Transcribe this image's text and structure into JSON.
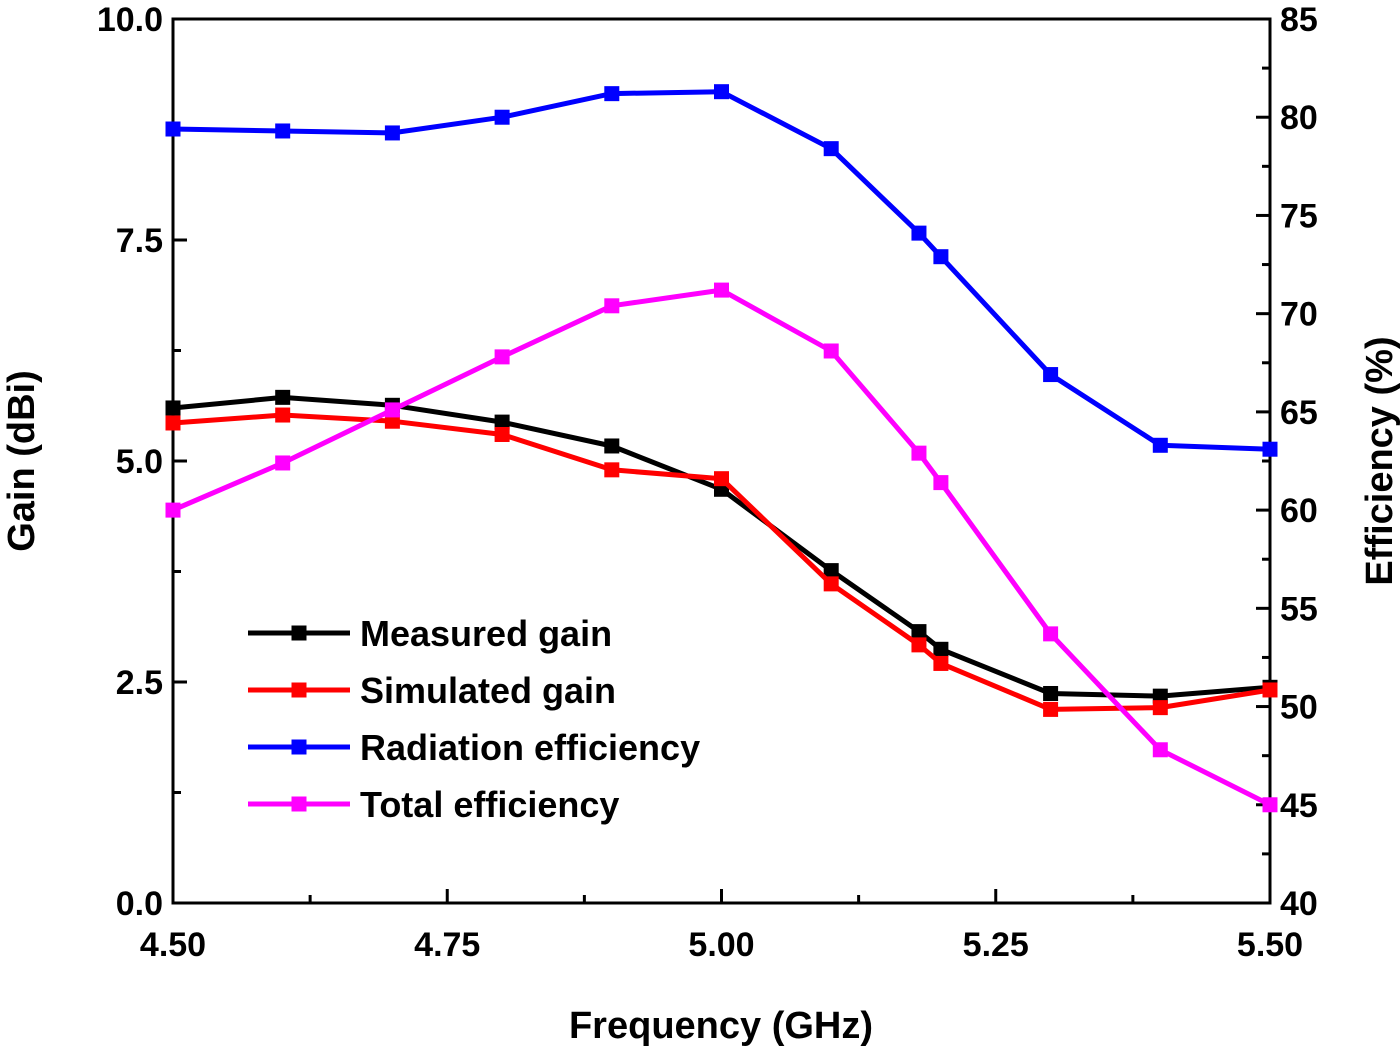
{
  "chart_data": {
    "type": "line",
    "xlabel": "Frequency (GHz)",
    "ylabel": "Gain (dBi)",
    "y2label": "Efficiency (%)",
    "xlim": [
      4.5,
      5.5
    ],
    "ylim": [
      0,
      10
    ],
    "y2lim": [
      40,
      85
    ],
    "xticks": [
      "4.50",
      "4.75",
      "5.00",
      "5.25",
      "5.50"
    ],
    "yticks": [
      "0.0",
      "2.5",
      "5.0",
      "7.5",
      "10.0"
    ],
    "y2ticks": [
      "40",
      "45",
      "50",
      "55",
      "60",
      "65",
      "70",
      "75",
      "80",
      "85"
    ],
    "grid": false,
    "legend_position": "bottom-left",
    "series": [
      {
        "name": "Measured gain",
        "axis": "left",
        "color": "#000000",
        "x": [
          4.5,
          4.6,
          4.7,
          4.8,
          4.9,
          5.0,
          5.1,
          5.18,
          5.2,
          5.3,
          5.4,
          5.5
        ],
        "y": [
          5.6,
          5.72,
          5.63,
          5.44,
          5.17,
          4.68,
          3.76,
          3.07,
          2.87,
          2.37,
          2.34,
          2.44
        ]
      },
      {
        "name": "Simulated gain",
        "axis": "left",
        "color": "#ff0000",
        "x": [
          4.5,
          4.6,
          4.7,
          4.8,
          4.9,
          5.0,
          5.1,
          5.18,
          5.2,
          5.3,
          5.4,
          5.5
        ],
        "y": [
          5.43,
          5.52,
          5.45,
          5.3,
          4.9,
          4.8,
          3.61,
          2.92,
          2.71,
          2.19,
          2.21,
          2.41
        ]
      },
      {
        "name": "Radiation efficiency",
        "axis": "right",
        "color": "#0000ff",
        "x": [
          4.5,
          4.6,
          4.7,
          4.8,
          4.9,
          5.0,
          5.1,
          5.18,
          5.2,
          5.3,
          5.4,
          5.5
        ],
        "y": [
          79.4,
          79.3,
          79.2,
          80.0,
          81.2,
          81.3,
          78.4,
          74.1,
          72.9,
          66.9,
          63.3,
          63.1
        ]
      },
      {
        "name": "Total efficiency",
        "axis": "right",
        "color": "#ff00ff",
        "x": [
          4.5,
          4.6,
          4.7,
          4.8,
          4.9,
          5.0,
          5.1,
          5.18,
          5.2,
          5.3,
          5.4,
          5.5
        ],
        "y": [
          60.0,
          62.4,
          65.1,
          67.8,
          70.4,
          71.2,
          68.1,
          62.9,
          61.4,
          53.7,
          47.8,
          45.0
        ]
      }
    ]
  }
}
